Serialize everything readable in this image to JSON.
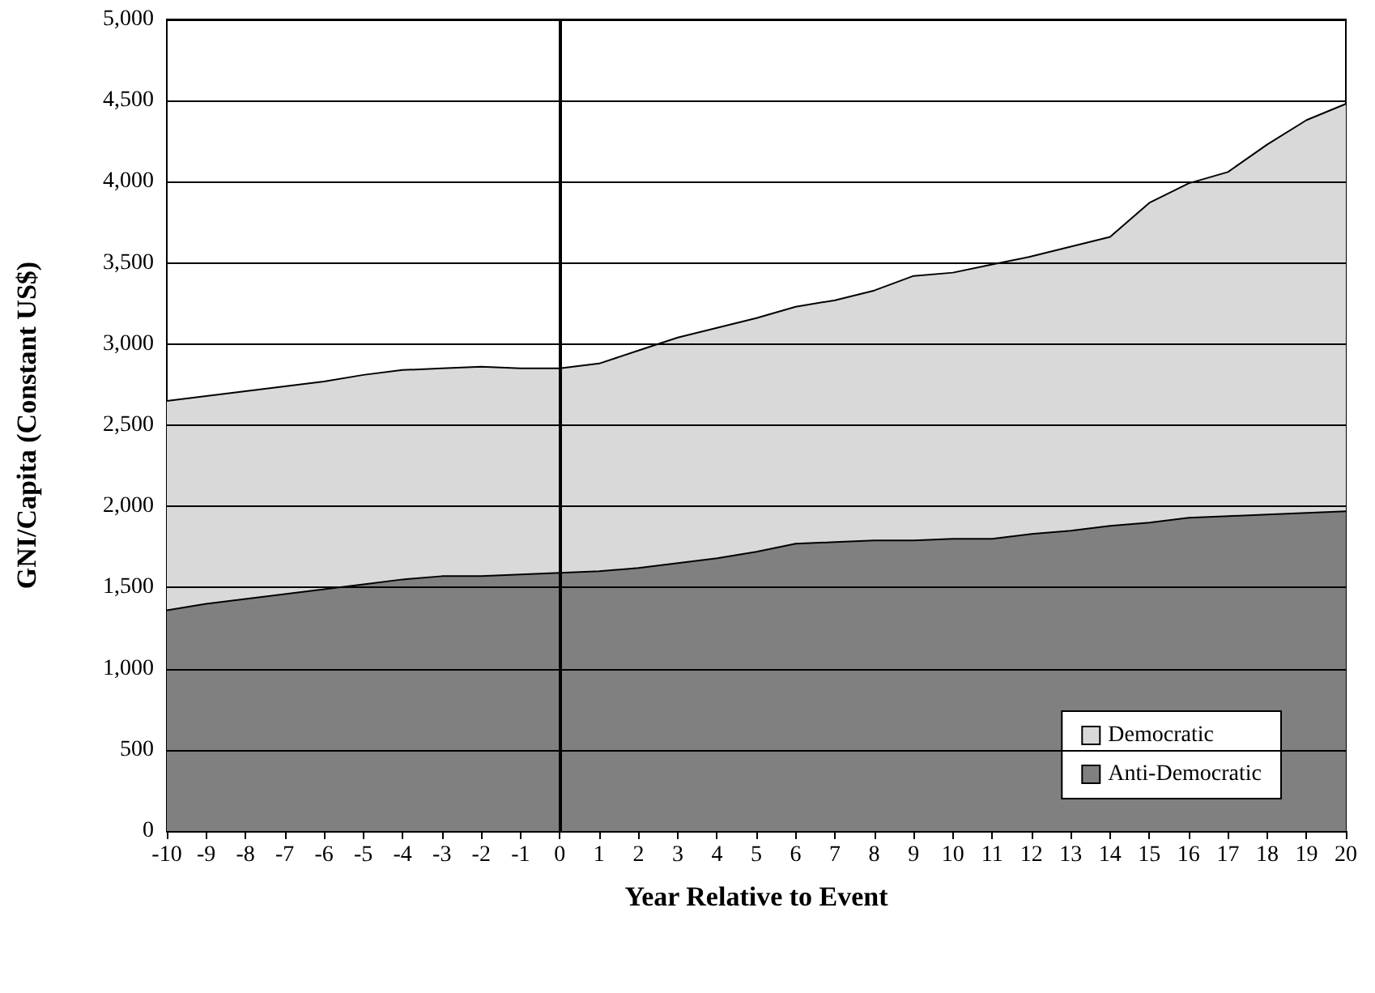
{
  "chart_data": {
    "type": "area",
    "xlabel": "Year Relative to Event",
    "ylabel": "GNI/Capita (Constant US$)",
    "x": [
      -10,
      -9,
      -8,
      -7,
      -6,
      -5,
      -4,
      -3,
      -2,
      -1,
      0,
      1,
      2,
      3,
      4,
      5,
      6,
      7,
      8,
      9,
      10,
      11,
      12,
      13,
      14,
      15,
      16,
      17,
      18,
      19,
      20
    ],
    "series": [
      {
        "name": "Democratic",
        "color": "#d9d9d9",
        "values": [
          2650,
          2680,
          2710,
          2740,
          2770,
          2810,
          2840,
          2850,
          2860,
          2850,
          2850,
          2880,
          2960,
          3040,
          3100,
          3160,
          3230,
          3270,
          3330,
          3420,
          3440,
          3490,
          3540,
          3600,
          3660,
          3870,
          3990,
          4060,
          4230,
          4380,
          4480
        ]
      },
      {
        "name": "Anti-Democratic",
        "color": "#808080",
        "values": [
          1360,
          1400,
          1430,
          1460,
          1490,
          1520,
          1550,
          1570,
          1570,
          1580,
          1590,
          1600,
          1620,
          1650,
          1680,
          1720,
          1770,
          1780,
          1790,
          1790,
          1800,
          1800,
          1830,
          1850,
          1880,
          1900,
          1930,
          1940,
          1950,
          1960,
          1970
        ]
      }
    ],
    "xlim": [
      -10,
      20
    ],
    "xticks": [
      -10,
      -9,
      -8,
      -7,
      -6,
      -5,
      -4,
      -3,
      -2,
      -1,
      0,
      1,
      2,
      3,
      4,
      5,
      6,
      7,
      8,
      9,
      10,
      11,
      12,
      13,
      14,
      15,
      16,
      17,
      18,
      19,
      20
    ],
    "ylim": [
      0,
      5000
    ],
    "yticks": [
      0,
      500,
      {
        "value": 1000,
        "label": "1,000"
      },
      {
        "value": 1500,
        "label": "1,500"
      },
      {
        "value": 2000,
        "label": "2,000"
      },
      {
        "value": 2500,
        "label": "2,500"
      },
      {
        "value": 3000,
        "label": "3,000"
      },
      {
        "value": 3500,
        "label": "3,500"
      },
      {
        "value": 4000,
        "label": "4,000"
      },
      {
        "value": 4500,
        "label": "4,500"
      },
      {
        "value": 5000,
        "label": "5,000"
      }
    ],
    "ref_lines": [
      {
        "axis": "x",
        "value": 0,
        "label": null,
        "color": "#000000"
      }
    ],
    "grid": "y",
    "legend": "bottom right"
  }
}
